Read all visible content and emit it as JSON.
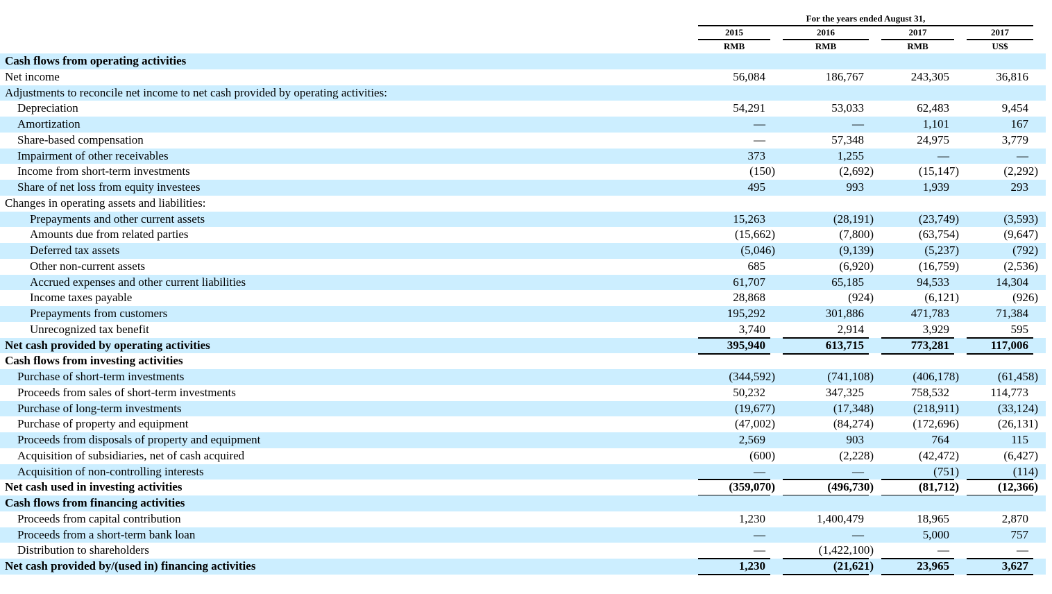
{
  "header": {
    "period_label": "For the years ended August 31,",
    "columns": [
      {
        "year": "2015",
        "currency": "RMB"
      },
      {
        "year": "2016",
        "currency": "RMB"
      },
      {
        "year": "2017",
        "currency": "RMB"
      },
      {
        "year": "2017",
        "currency": "US$"
      }
    ]
  },
  "rows": [
    {
      "label": "Cash flows from operating activities",
      "indent": 0,
      "bold": true,
      "values": [
        "",
        "",
        "",
        ""
      ]
    },
    {
      "label": "Net income",
      "indent": 0,
      "values": [
        "56,084",
        "186,767",
        "243,305",
        "36,816"
      ]
    },
    {
      "label": "Adjustments to reconcile net income to net cash provided by operating activities:",
      "indent": 0,
      "values": [
        "",
        "",
        "",
        ""
      ]
    },
    {
      "label": "Depreciation",
      "indent": 1,
      "values": [
        "54,291",
        "53,033",
        "62,483",
        "9,454"
      ]
    },
    {
      "label": "Amortization",
      "indent": 1,
      "values": [
        "—",
        "—",
        "1,101",
        "167"
      ]
    },
    {
      "label": "Share-based compensation",
      "indent": 1,
      "values": [
        "—",
        "57,348",
        "24,975",
        "3,779"
      ]
    },
    {
      "label": "Impairment of other receivables",
      "indent": 1,
      "values": [
        "373",
        "1,255",
        "—",
        "—"
      ]
    },
    {
      "label": "Income from short-term investments",
      "indent": 1,
      "values": [
        "(150)",
        "(2,692)",
        "(15,147)",
        "(2,292)"
      ]
    },
    {
      "label": "Share of net loss from equity investees",
      "indent": 1,
      "values": [
        "495",
        "993",
        "1,939",
        "293"
      ]
    },
    {
      "label": "Changes in operating assets and liabilities:",
      "indent": 0,
      "values": [
        "",
        "",
        "",
        ""
      ]
    },
    {
      "label": "Prepayments and other current assets",
      "indent": 2,
      "values": [
        "15,263",
        "(28,191)",
        "(23,749)",
        "(3,593)"
      ]
    },
    {
      "label": "Amounts due from related parties",
      "indent": 2,
      "values": [
        "(15,662)",
        "(7,800)",
        "(63,754)",
        "(9,647)"
      ]
    },
    {
      "label": "Deferred tax assets",
      "indent": 2,
      "values": [
        "(5,046)",
        "(9,139)",
        "(5,237)",
        "(792)"
      ]
    },
    {
      "label": "Other non-current assets",
      "indent": 2,
      "values": [
        "685",
        "(6,920)",
        "(16,759)",
        "(2,536)"
      ]
    },
    {
      "label": "Accrued expenses and other current liabilities",
      "indent": 2,
      "values": [
        "61,707",
        "65,185",
        "94,533",
        "14,304"
      ]
    },
    {
      "label": "Income taxes payable",
      "indent": 2,
      "values": [
        "28,868",
        "(924)",
        "(6,121)",
        "(926)"
      ]
    },
    {
      "label": "Prepayments from customers",
      "indent": 2,
      "values": [
        "195,292",
        "301,886",
        "471,783",
        "71,384"
      ]
    },
    {
      "label": "Unrecognized tax benefit",
      "indent": 2,
      "values": [
        "3,740",
        "2,914",
        "3,929",
        "595"
      ]
    },
    {
      "label": "Net cash provided by operating activities",
      "indent": 0,
      "bold": true,
      "total": true,
      "values": [
        "395,940",
        "613,715",
        "773,281",
        "117,006"
      ]
    },
    {
      "label": "Cash flows from investing activities",
      "indent": 0,
      "bold": true,
      "values": [
        "",
        "",
        "",
        ""
      ]
    },
    {
      "label": "Purchase of short-term investments",
      "indent": 1,
      "values": [
        "(344,592)",
        "(741,108)",
        "(406,178)",
        "(61,458)"
      ]
    },
    {
      "label": "Proceeds from sales of short-term investments",
      "indent": 1,
      "values": [
        "50,232",
        "347,325",
        "758,532",
        "114,773"
      ]
    },
    {
      "label": "Purchase of long-term investments",
      "indent": 1,
      "values": [
        "(19,677)",
        "(17,348)",
        "(218,911)",
        "(33,124)"
      ]
    },
    {
      "label": "Purchase of property and equipment",
      "indent": 1,
      "values": [
        "(47,002)",
        "(84,274)",
        "(172,696)",
        "(26,131)"
      ]
    },
    {
      "label": "Proceeds from disposals of property and equipment",
      "indent": 1,
      "values": [
        "2,569",
        "903",
        "764",
        "115"
      ]
    },
    {
      "label": "Acquisition of subsidiaries, net of cash acquired",
      "indent": 1,
      "values": [
        "(600)",
        "(2,228)",
        "(42,472)",
        "(6,427)"
      ]
    },
    {
      "label": "Acquisition of non-controlling interests",
      "indent": 1,
      "values": [
        "—",
        "—",
        "(751)",
        "(114)"
      ]
    },
    {
      "label": "Net cash used in investing activities",
      "indent": 0,
      "bold": true,
      "total": true,
      "values": [
        "(359,070)",
        "(496,730)",
        "(81,712)",
        "(12,366)"
      ]
    },
    {
      "label": "Cash flows from financing activities",
      "indent": 0,
      "bold": true,
      "values": [
        "",
        "",
        "",
        ""
      ]
    },
    {
      "label": "Proceeds from capital contribution",
      "indent": 1,
      "values": [
        "1,230",
        "1,400,479",
        "18,965",
        "2,870"
      ]
    },
    {
      "label": "Proceeds from a short-term bank loan",
      "indent": 1,
      "values": [
        "—",
        "—",
        "5,000",
        "757"
      ]
    },
    {
      "label": "Distribution to shareholders",
      "indent": 1,
      "values": [
        "—",
        "(1,422,100)",
        "—",
        "—"
      ]
    },
    {
      "label": "Net cash provided by/(used in) financing activities",
      "indent": 0,
      "bold": true,
      "total": true,
      "values": [
        "1,230",
        "(21,621)",
        "23,965",
        "3,627"
      ]
    }
  ]
}
